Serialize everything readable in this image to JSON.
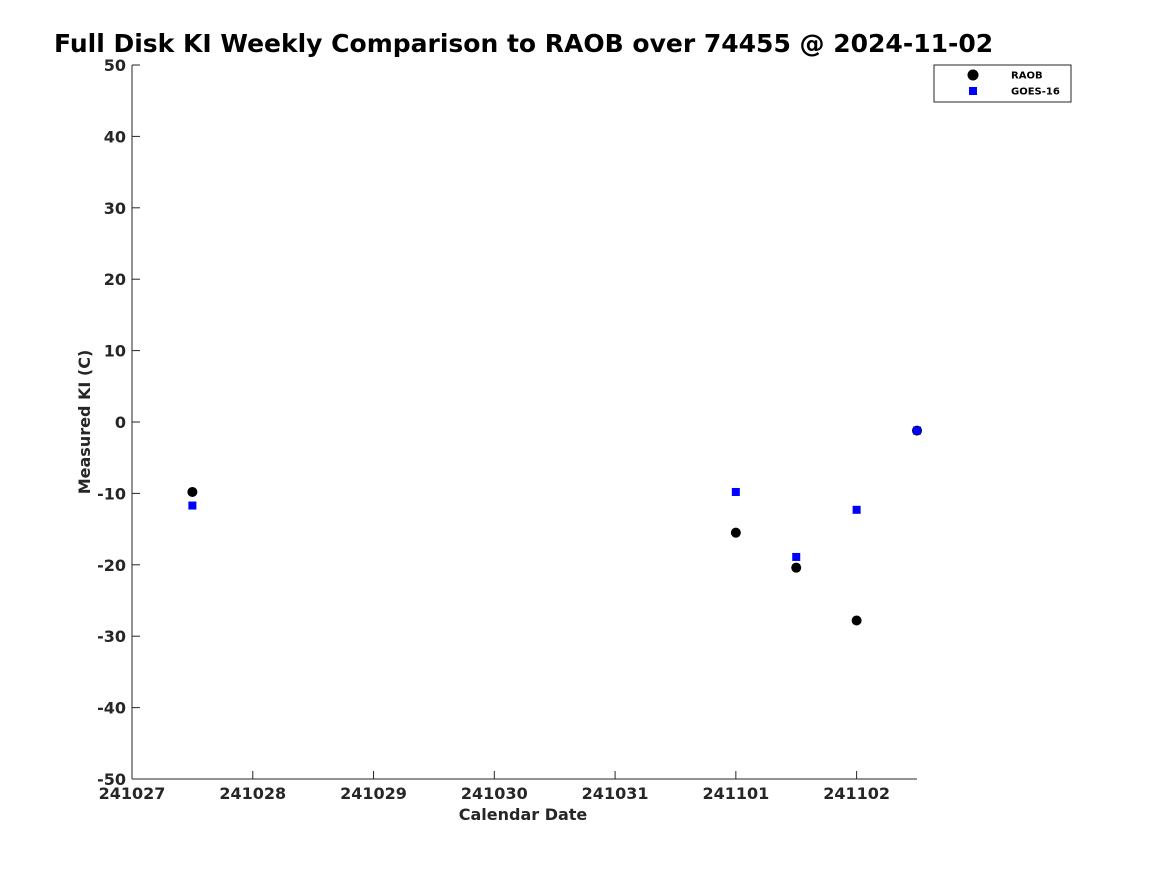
{
  "chart_data": {
    "type": "scatter",
    "title": "Full Disk KI Weekly Comparison to RAOB over 74455 @ 2024-11-02",
    "xlabel": "Calendar Date",
    "ylabel": "Measured KI (C)",
    "xlim": [
      "2024-10-27",
      "2024-11-02 12:00"
    ],
    "ylim": [
      -50,
      50
    ],
    "x_ticks": [
      {
        "x": "2024-10-27",
        "label": "241027"
      },
      {
        "x": "2024-10-28",
        "label": "241028"
      },
      {
        "x": "2024-10-29",
        "label": "241029"
      },
      {
        "x": "2024-10-30",
        "label": "241030"
      },
      {
        "x": "2024-10-31",
        "label": "241031"
      },
      {
        "x": "2024-11-01",
        "label": "241101"
      },
      {
        "x": "2024-11-02",
        "label": "241102"
      }
    ],
    "y_ticks": [
      {
        "y": 50,
        "label": "50"
      },
      {
        "y": 40,
        "label": "40"
      },
      {
        "y": 30,
        "label": "30"
      },
      {
        "y": 20,
        "label": "20"
      },
      {
        "y": 10,
        "label": "10"
      },
      {
        "y": 0,
        "label": "0"
      },
      {
        "y": -10,
        "label": "-10"
      },
      {
        "y": -20,
        "label": "-20"
      },
      {
        "y": -30,
        "label": "-30"
      },
      {
        "y": -40,
        "label": "-40"
      },
      {
        "y": -50,
        "label": "-50"
      }
    ],
    "grid": false,
    "legend_position": "top-right",
    "series": [
      {
        "name": "RAOB",
        "marker": "circle",
        "color": "#000000",
        "points": [
          {
            "x": "2024-10-27 12:00",
            "y": -9.8
          },
          {
            "x": "2024-11-01 00:00",
            "y": -15.5
          },
          {
            "x": "2024-11-01 12:00",
            "y": -20.4
          },
          {
            "x": "2024-11-02 00:00",
            "y": -27.8
          },
          {
            "x": "2024-11-02 12:00",
            "y": -1.2
          }
        ]
      },
      {
        "name": "GOES-16",
        "marker": "square",
        "color": "#0000ff",
        "points": [
          {
            "x": "2024-10-27 12:00",
            "y": -11.7
          },
          {
            "x": "2024-11-01 00:00",
            "y": -9.8
          },
          {
            "x": "2024-11-01 12:00",
            "y": -18.9
          },
          {
            "x": "2024-11-02 00:00",
            "y": -12.3
          },
          {
            "x": "2024-11-02 12:00",
            "y": -1.2
          }
        ]
      }
    ]
  }
}
